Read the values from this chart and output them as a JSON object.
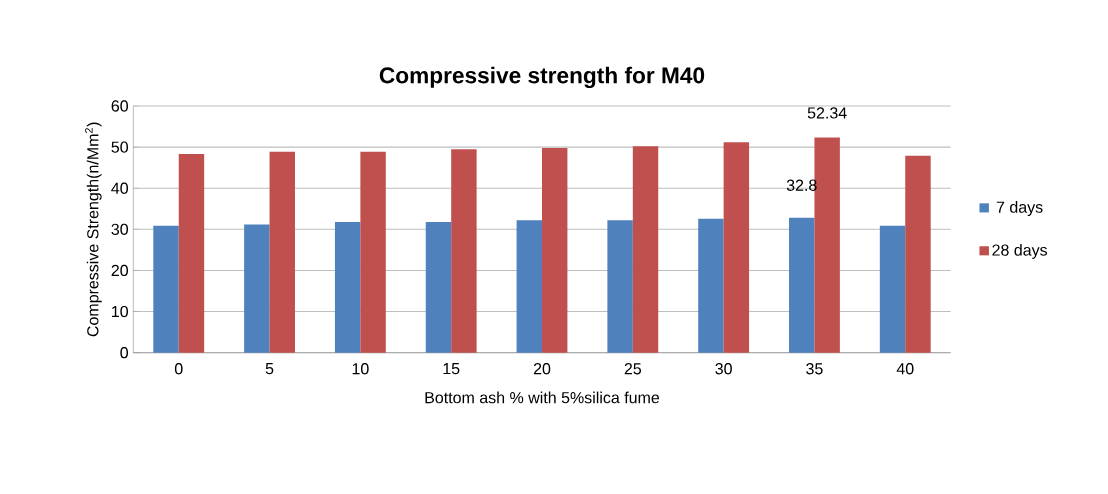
{
  "chart_data": {
    "type": "bar",
    "title": "Compressive strength for M40",
    "xlabel": "Bottom ash % with 5%silica fume",
    "ylabel": "Compressive Strength(n/Mm$^{2}$)",
    "categories": [
      "0",
      "5",
      "10",
      "15",
      "20",
      "25",
      "30",
      "35",
      "40"
    ],
    "series": [
      {
        "name": "7 days",
        "color": "#4f81bd",
        "values": [
          30.9,
          31.2,
          31.8,
          31.8,
          32.2,
          32.2,
          32.6,
          32.8,
          30.9
        ],
        "value_labels": [
          null,
          null,
          null,
          null,
          null,
          null,
          null,
          "32.8",
          null
        ]
      },
      {
        "name": "28 days",
        "color": "#c0504d",
        "values": [
          48.3,
          48.9,
          48.9,
          49.5,
          49.8,
          50.2,
          51.2,
          52.34,
          47.9
        ],
        "value_labels": [
          null,
          null,
          null,
          null,
          null,
          null,
          null,
          "52.34",
          null
        ]
      }
    ],
    "ylim": [
      0,
      60
    ],
    "yticks": [
      0,
      10,
      20,
      30,
      40,
      50,
      60
    ],
    "grid": "y",
    "legend": "right"
  }
}
